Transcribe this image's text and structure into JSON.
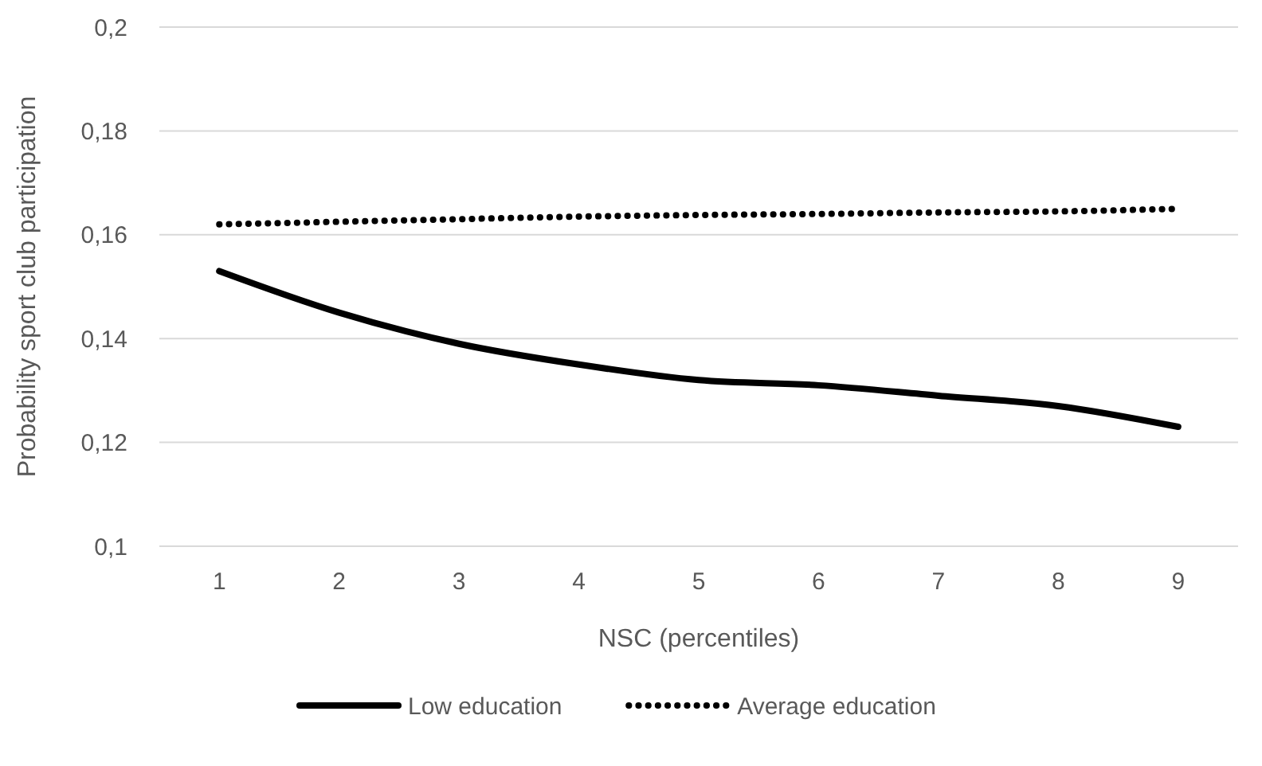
{
  "chart_data": {
    "type": "line",
    "xlabel": "NSC (percentiles)",
    "ylabel": "Probability sport club participation",
    "categories": [
      "1",
      "2",
      "3",
      "4",
      "5",
      "6",
      "7",
      "8",
      "9"
    ],
    "series": [
      {
        "name": "Low education",
        "color": "#000000",
        "line_style": "solid",
        "values": [
          0.153,
          0.145,
          0.139,
          0.135,
          0.132,
          0.131,
          0.129,
          0.127,
          0.123
        ]
      },
      {
        "name": "Average education",
        "color": "#000000",
        "line_style": "dotted",
        "values": [
          0.162,
          0.1625,
          0.163,
          0.1635,
          0.1638,
          0.164,
          0.1643,
          0.1645,
          0.165
        ]
      }
    ],
    "ylim": [
      0.1,
      0.2
    ],
    "yticks": [
      {
        "value": 0.1,
        "label": "0,1"
      },
      {
        "value": 0.12,
        "label": "0,12"
      },
      {
        "value": 0.14,
        "label": "0,14"
      },
      {
        "value": 0.16,
        "label": "0,16"
      },
      {
        "value": 0.18,
        "label": "0,18"
      },
      {
        "value": 0.2,
        "label": "0,2"
      }
    ],
    "grid": "y",
    "legend": "bottom",
    "marker": "none"
  }
}
